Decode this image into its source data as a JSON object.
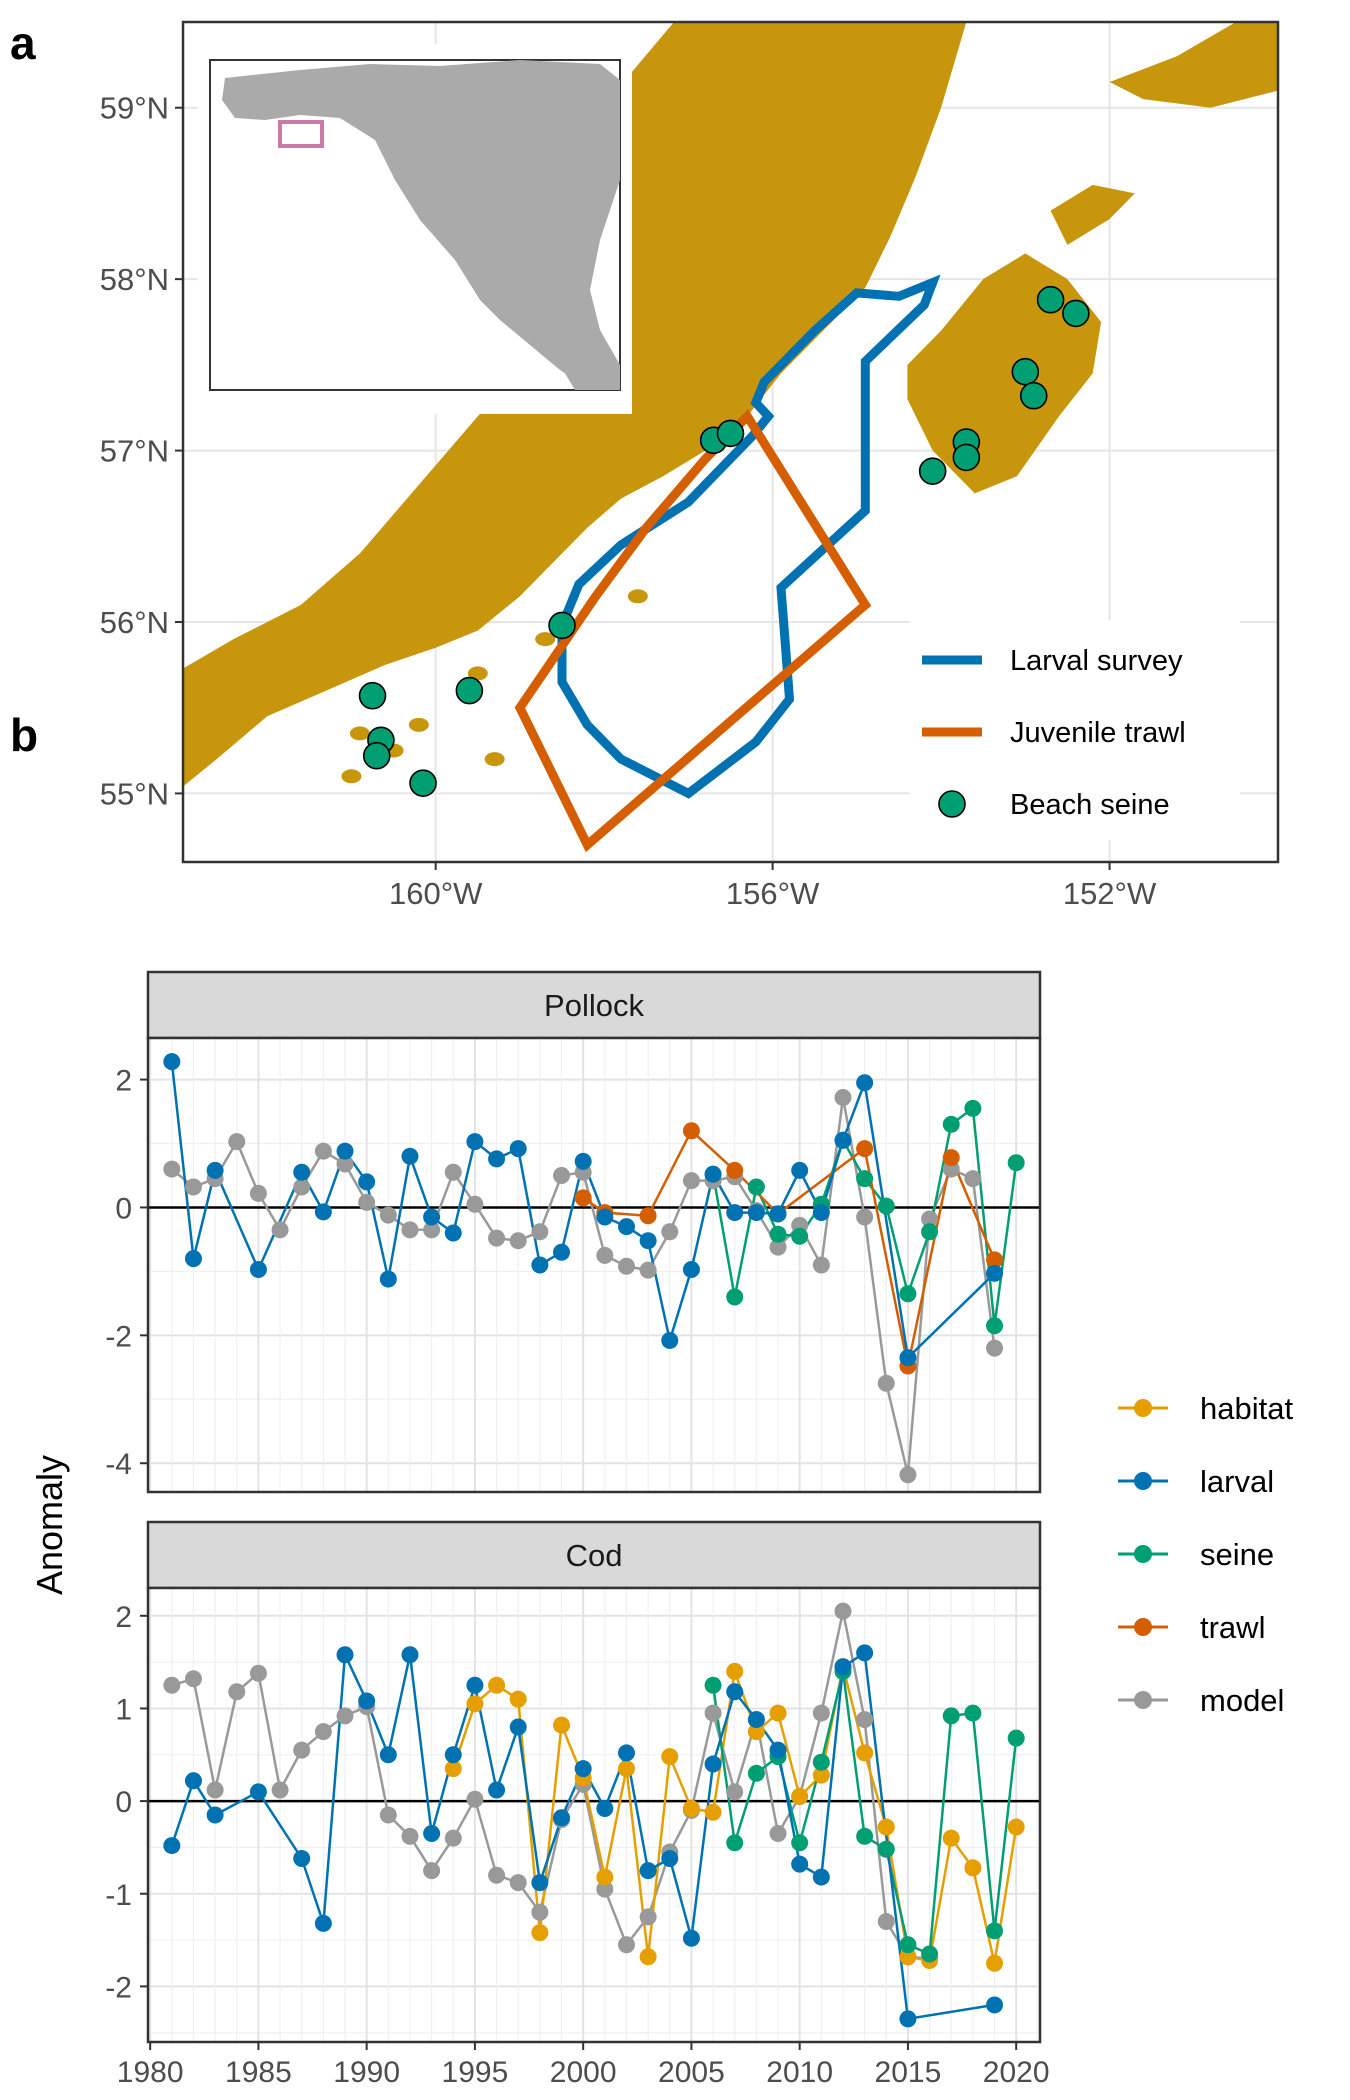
{
  "panel_a": {
    "letter": "a",
    "lat_ticks": [
      "59°N",
      "58°N",
      "57°N",
      "56°N",
      "55°N"
    ],
    "lon_ticks": [
      "160°W",
      "156°W",
      "152°W"
    ],
    "legend": [
      {
        "label": "Larval survey",
        "kind": "line",
        "color": "#0072B2"
      },
      {
        "label": "Juvenile trawl",
        "kind": "line",
        "color": "#D55E00"
      },
      {
        "label": "Beach seine",
        "kind": "point",
        "color": "#009E73"
      }
    ],
    "land_color": "#C8960C",
    "inset_box_color": "#CC79A7"
  },
  "panel_b": {
    "letter": "b",
    "ylabel": "Anomaly",
    "legend": [
      {
        "label": "habitat",
        "color": "#E69F00"
      },
      {
        "label": "larval",
        "color": "#0072B2"
      },
      {
        "label": "seine",
        "color": "#009E73"
      },
      {
        "label": "trawl",
        "color": "#D55E00"
      },
      {
        "label": "model",
        "color": "#999999"
      }
    ]
  },
  "chart_data": [
    {
      "type": "scatter",
      "title": "",
      "xlabel": "",
      "ylabel": "",
      "xlim": [
        -163.0,
        -150.0
      ],
      "ylim": [
        54.6,
        59.5
      ],
      "xticks": [
        -160,
        -156,
        -152
      ],
      "yticks": [
        59,
        58,
        57,
        56,
        55
      ],
      "series": [
        {
          "name": "Larval survey",
          "type": "polygon",
          "points": [
            [
              -154.1,
              57.98
            ],
            [
              -154.5,
              57.9
            ],
            [
              -155.0,
              57.92
            ],
            [
              -155.5,
              57.7
            ],
            [
              -156.1,
              57.4
            ],
            [
              -156.2,
              57.28
            ],
            [
              -156.05,
              57.2
            ],
            [
              -156.25,
              57.08
            ],
            [
              -157.0,
              56.7
            ],
            [
              -157.8,
              56.45
            ],
            [
              -158.3,
              56.22
            ],
            [
              -158.5,
              55.98
            ],
            [
              -158.5,
              55.65
            ],
            [
              -158.2,
              55.4
            ],
            [
              -157.8,
              55.2
            ],
            [
              -157.0,
              55.0
            ],
            [
              -156.2,
              55.3
            ],
            [
              -155.8,
              55.55
            ],
            [
              -155.9,
              56.2
            ],
            [
              -154.9,
              56.65
            ],
            [
              -154.9,
              57.05
            ],
            [
              -154.9,
              57.52
            ],
            [
              -154.2,
              57.85
            ]
          ]
        },
        {
          "name": "Juvenile trawl",
          "type": "polygon",
          "points": [
            [
              -156.3,
              57.2
            ],
            [
              -154.9,
              56.1
            ],
            [
              -158.2,
              54.7
            ],
            [
              -159.0,
              55.5
            ],
            [
              -158.1,
              56.15
            ],
            [
              -157.5,
              56.55
            ],
            [
              -156.8,
              56.95
            ]
          ]
        },
        {
          "name": "Beach seine",
          "type": "scatter",
          "points": [
            [
              -152.7,
              57.88
            ],
            [
              -152.4,
              57.8
            ],
            [
              -153.0,
              57.46
            ],
            [
              -152.9,
              57.32
            ],
            [
              -153.7,
              57.05
            ],
            [
              -153.7,
              56.96
            ],
            [
              -154.1,
              56.88
            ],
            [
              -156.7,
              57.06
            ],
            [
              -156.5,
              57.1
            ],
            [
              -158.5,
              55.98
            ],
            [
              -159.6,
              55.6
            ],
            [
              -160.75,
              55.57
            ],
            [
              -160.65,
              55.31
            ],
            [
              -160.7,
              55.22
            ],
            [
              -160.15,
              55.06
            ]
          ]
        }
      ]
    },
    {
      "type": "line",
      "title": "Pollock",
      "xlabel": "",
      "ylabel": "Anomaly",
      "xlim": [
        1979.9,
        2021.1
      ],
      "ylim": [
        -4.45,
        2.65
      ],
      "yticks": [
        2,
        0,
        -2,
        -4
      ],
      "grid": true,
      "series": [
        {
          "name": "larval",
          "color": "#0072B2",
          "x": [
            1981,
            1982,
            1983,
            1985,
            1987,
            1988,
            1989,
            1990,
            1991,
            1992,
            1993,
            1994,
            1995,
            1996,
            1997,
            1998,
            1999,
            2000,
            2001,
            2002,
            2003,
            2004,
            2005,
            2006,
            2007,
            2008,
            2009,
            2010,
            2011,
            2012,
            2013,
            2015,
            2019
          ],
          "y": [
            2.28,
            -0.8,
            0.58,
            -0.97,
            0.55,
            -0.07,
            0.88,
            0.4,
            -1.12,
            0.8,
            -0.15,
            -0.4,
            1.03,
            0.76,
            0.92,
            -0.9,
            -0.7,
            0.72,
            -0.15,
            -0.3,
            -0.52,
            -2.08,
            -0.97,
            0.52,
            -0.08,
            -0.08,
            -0.1,
            0.58,
            -0.08,
            1.05,
            1.95,
            -2.35,
            -1.03
          ]
        },
        {
          "name": "seine",
          "color": "#009E73",
          "x": [
            2006,
            2007,
            2008,
            2009,
            2010,
            2011,
            2012,
            2013,
            2014,
            2015,
            2016,
            2017,
            2018,
            2019,
            2020
          ],
          "y": [
            0.52,
            -1.4,
            0.32,
            -0.42,
            -0.45,
            0.05,
            1.05,
            0.45,
            0.02,
            -1.35,
            -0.38,
            1.3,
            1.55,
            -1.85,
            0.7
          ]
        },
        {
          "name": "trawl",
          "color": "#D55E00",
          "x": [
            2000,
            2001,
            2003,
            2005,
            2007,
            2009,
            2013,
            2015,
            2017,
            2019
          ],
          "y": [
            0.15,
            -0.08,
            -0.13,
            1.2,
            0.58,
            -0.1,
            0.92,
            -2.48,
            0.78,
            -0.82
          ]
        },
        {
          "name": "model",
          "color": "#999999",
          "x": [
            1981,
            1982,
            1983,
            1984,
            1985,
            1986,
            1987,
            1988,
            1989,
            1990,
            1991,
            1992,
            1993,
            1994,
            1995,
            1996,
            1997,
            1998,
            1999,
            2000,
            2001,
            2002,
            2003,
            2004,
            2005,
            2006,
            2007,
            2008,
            2009,
            2010,
            2011,
            2012,
            2013,
            2014,
            2015,
            2016,
            2017,
            2018,
            2019
          ],
          "y": [
            0.6,
            0.32,
            0.45,
            1.03,
            0.22,
            -0.35,
            0.32,
            0.88,
            0.68,
            0.08,
            -0.12,
            -0.35,
            -0.35,
            0.55,
            0.05,
            -0.48,
            -0.52,
            -0.38,
            0.5,
            0.55,
            -0.75,
            -0.92,
            -0.98,
            -0.38,
            0.42,
            0.42,
            0.48,
            -0.05,
            -0.62,
            -0.28,
            -0.9,
            1.72,
            -0.15,
            -2.75,
            -4.18,
            -0.18,
            0.6,
            0.45,
            -2.2
          ]
        }
      ]
    },
    {
      "type": "line",
      "title": "Cod",
      "xlabel": "",
      "ylabel": "Anomaly",
      "xlim": [
        1979.9,
        2021.1
      ],
      "ylim": [
        -2.6,
        2.3
      ],
      "yticks": [
        2,
        1,
        0,
        -1,
        -2
      ],
      "xticks": [
        1980,
        1985,
        1990,
        1995,
        2000,
        2005,
        2010,
        2015,
        2020
      ],
      "grid": true,
      "series": [
        {
          "name": "habitat",
          "color": "#E69F00",
          "x": [
            1994,
            1995,
            1996,
            1997,
            1998,
            1999,
            2000,
            2001,
            2002,
            2003,
            2004,
            2005,
            2006,
            2007,
            2008,
            2009,
            2010,
            2011,
            2012,
            2013,
            2014,
            2015,
            2016,
            2017,
            2018,
            2019,
            2020
          ],
          "y": [
            0.35,
            1.05,
            1.25,
            1.1,
            -1.42,
            0.82,
            0.25,
            -0.82,
            0.35,
            -1.68,
            0.48,
            -0.08,
            -0.12,
            1.4,
            0.75,
            0.95,
            0.05,
            0.28,
            1.45,
            0.52,
            -0.28,
            -1.68,
            -1.72,
            -0.4,
            -0.72,
            -1.75,
            -0.28
          ]
        },
        {
          "name": "larval",
          "color": "#0072B2",
          "x": [
            1981,
            1982,
            1983,
            1985,
            1987,
            1988,
            1989,
            1990,
            1991,
            1992,
            1993,
            1994,
            1995,
            1996,
            1997,
            1998,
            1999,
            2000,
            2001,
            2002,
            2003,
            2004,
            2005,
            2006,
            2007,
            2008,
            2009,
            2010,
            2011,
            2012,
            2013,
            2015,
            2019
          ],
          "y": [
            -0.48,
            0.22,
            -0.15,
            0.1,
            -0.62,
            -1.32,
            1.58,
            1.08,
            0.5,
            1.58,
            -0.35,
            0.5,
            1.25,
            0.12,
            0.8,
            -0.88,
            -0.18,
            0.35,
            -0.08,
            0.52,
            -0.75,
            -0.62,
            -1.48,
            0.4,
            1.18,
            0.88,
            0.55,
            -0.68,
            -0.82,
            1.45,
            1.6,
            -2.35,
            -2.2
          ]
        },
        {
          "name": "seine",
          "color": "#009E73",
          "x": [
            2006,
            2007,
            2008,
            2009,
            2010,
            2011,
            2012,
            2013,
            2014,
            2015,
            2016,
            2017,
            2018,
            2019,
            2020
          ],
          "y": [
            1.25,
            -0.45,
            0.3,
            0.48,
            -0.45,
            0.42,
            1.4,
            -0.38,
            -0.52,
            -1.55,
            -1.65,
            0.92,
            0.95,
            -1.4,
            0.68
          ]
        },
        {
          "name": "model",
          "color": "#999999",
          "x": [
            1981,
            1982,
            1983,
            1984,
            1985,
            1986,
            1987,
            1988,
            1989,
            1990,
            1991,
            1992,
            1993,
            1994,
            1995,
            1996,
            1997,
            1998,
            1999,
            2000,
            2001,
            2002,
            2003,
            2004,
            2005,
            2006,
            2007,
            2008,
            2009,
            2010,
            2011,
            2012,
            2013,
            2014,
            2015,
            2016
          ],
          "y": [
            1.25,
            1.32,
            0.12,
            1.18,
            1.38,
            0.12,
            0.55,
            0.75,
            0.92,
            1.02,
            -0.15,
            -0.38,
            -0.75,
            -0.4,
            0.02,
            -0.8,
            -0.88,
            -1.2,
            -0.2,
            0.18,
            -0.95,
            -1.55,
            -1.25,
            -0.55,
            -0.1,
            0.95,
            0.1,
            0.88,
            -0.35,
            0.05,
            0.95,
            2.05,
            0.88,
            -1.3,
            -1.68,
            -1.7
          ]
        }
      ]
    }
  ]
}
